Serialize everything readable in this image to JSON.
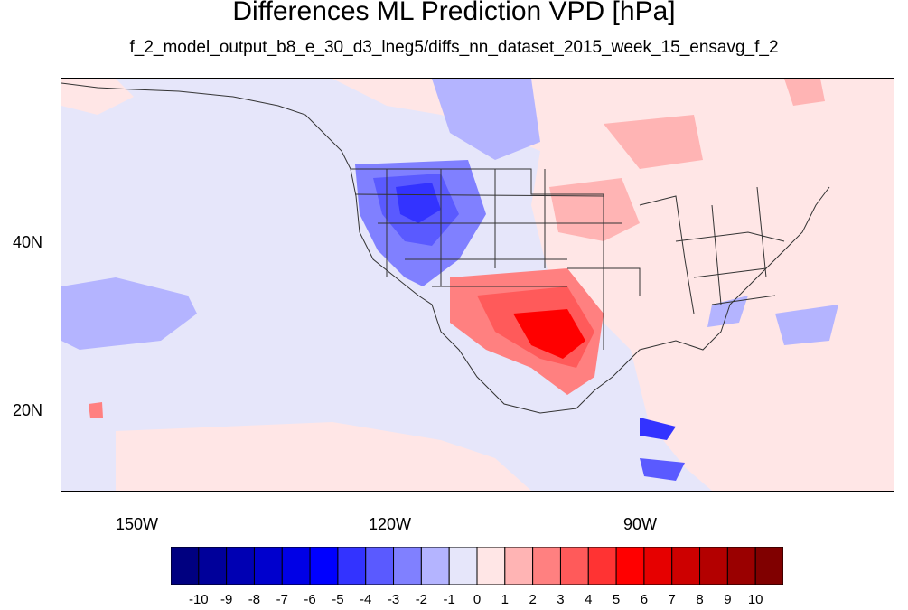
{
  "title": "Differences ML Prediction VPD [hPa]",
  "subtitle": "f_2_model_output_b8_e_30_d3_lneg5/diffs_nn_dataset_2015_week_15_ensavg_f_2",
  "map": {
    "projection": "cylindrical equidistant",
    "lon_range": [
      -160,
      -61
    ],
    "lat_range": [
      11,
      60
    ],
    "x_ticks": [
      {
        "lon": -150,
        "label": "150W"
      },
      {
        "lon": -120,
        "label": "120W"
      },
      {
        "lon": -90,
        "label": "90W"
      }
    ],
    "y_ticks": [
      {
        "lat": 40,
        "label": "40N"
      },
      {
        "lat": 20,
        "label": "20N"
      }
    ],
    "background_color": "#e6e6fa"
  },
  "colorbar": {
    "colors": [
      "#000080",
      "#00009a",
      "#0000b3",
      "#0000cd",
      "#0000e6",
      "#0000ff",
      "#3333ff",
      "#5a5aff",
      "#8080ff",
      "#b4b4ff",
      "#e6e6fa",
      "#ffe6e6",
      "#ffb4b4",
      "#ff8080",
      "#ff5a5a",
      "#ff3333",
      "#ff0000",
      "#e60000",
      "#cd0000",
      "#b30000",
      "#9a0000",
      "#800000"
    ],
    "labels": [
      "-10",
      "-9",
      "-8",
      "-7",
      "-6",
      "-5",
      "-4",
      "-3",
      "-2",
      "-1",
      "0",
      "1",
      "2",
      "3",
      "4",
      "5",
      "6",
      "7",
      "8",
      "9",
      "10"
    ]
  }
}
